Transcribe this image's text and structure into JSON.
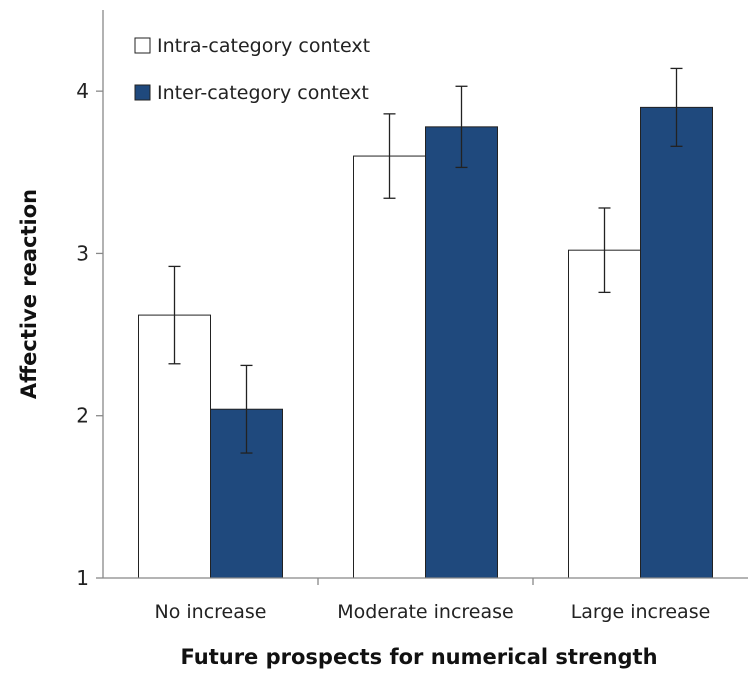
{
  "chart_data": {
    "type": "bar",
    "title": "",
    "xlabel": "Future prospects for numerical strength",
    "ylabel": "Affective reaction",
    "categories": [
      "No increase",
      "Moderate increase",
      "Large increase"
    ],
    "ylim": [
      1,
      4.5
    ],
    "yticks": [
      1,
      2,
      3,
      4
    ],
    "grid": false,
    "legend_position": "top-left",
    "series": [
      {
        "name": "Intra-category context",
        "color": "#ffffff",
        "values": [
          2.62,
          3.6,
          3.02
        ],
        "error": [
          0.3,
          0.26,
          0.26
        ]
      },
      {
        "name": "Inter-category context",
        "color": "#1f497d",
        "values": [
          2.04,
          3.78,
          3.9
        ],
        "error": [
          0.27,
          0.25,
          0.24
        ]
      }
    ]
  }
}
